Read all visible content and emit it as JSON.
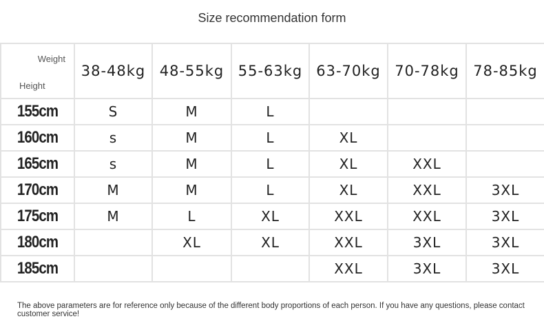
{
  "title": "Size recommendation form",
  "corner": {
    "weight": "Weight",
    "height": "Height"
  },
  "weights": [
    "38-48kg",
    "48-55kg",
    "55-63kg",
    "63-70kg",
    "70-78kg",
    "78-85kg"
  ],
  "rows": [
    {
      "height": "155cm",
      "sizes": [
        "S",
        "M",
        "L",
        "",
        "",
        ""
      ]
    },
    {
      "height": "160cm",
      "sizes": [
        "s",
        "M",
        "L",
        "XL",
        "",
        ""
      ]
    },
    {
      "height": "165cm",
      "sizes": [
        "s",
        "M",
        "L",
        "XL",
        "XXL",
        ""
      ]
    },
    {
      "height": "170cm",
      "sizes": [
        "M",
        "M",
        "L",
        "XL",
        "XXL",
        "3XL"
      ]
    },
    {
      "height": "175cm",
      "sizes": [
        "M",
        "L",
        "XL",
        "XXL",
        "XXL",
        "3XL"
      ]
    },
    {
      "height": "180cm",
      "sizes": [
        "",
        "XL",
        "XL",
        "XXL",
        "3XL",
        "3XL"
      ]
    },
    {
      "height": "185cm",
      "sizes": [
        "",
        "",
        "",
        "XXL",
        "3XL",
        "3XL"
      ]
    }
  ],
  "note": "The above parameters are for reference only because of the different body proportions of each person. If you have any questions, please contact customer service!"
}
